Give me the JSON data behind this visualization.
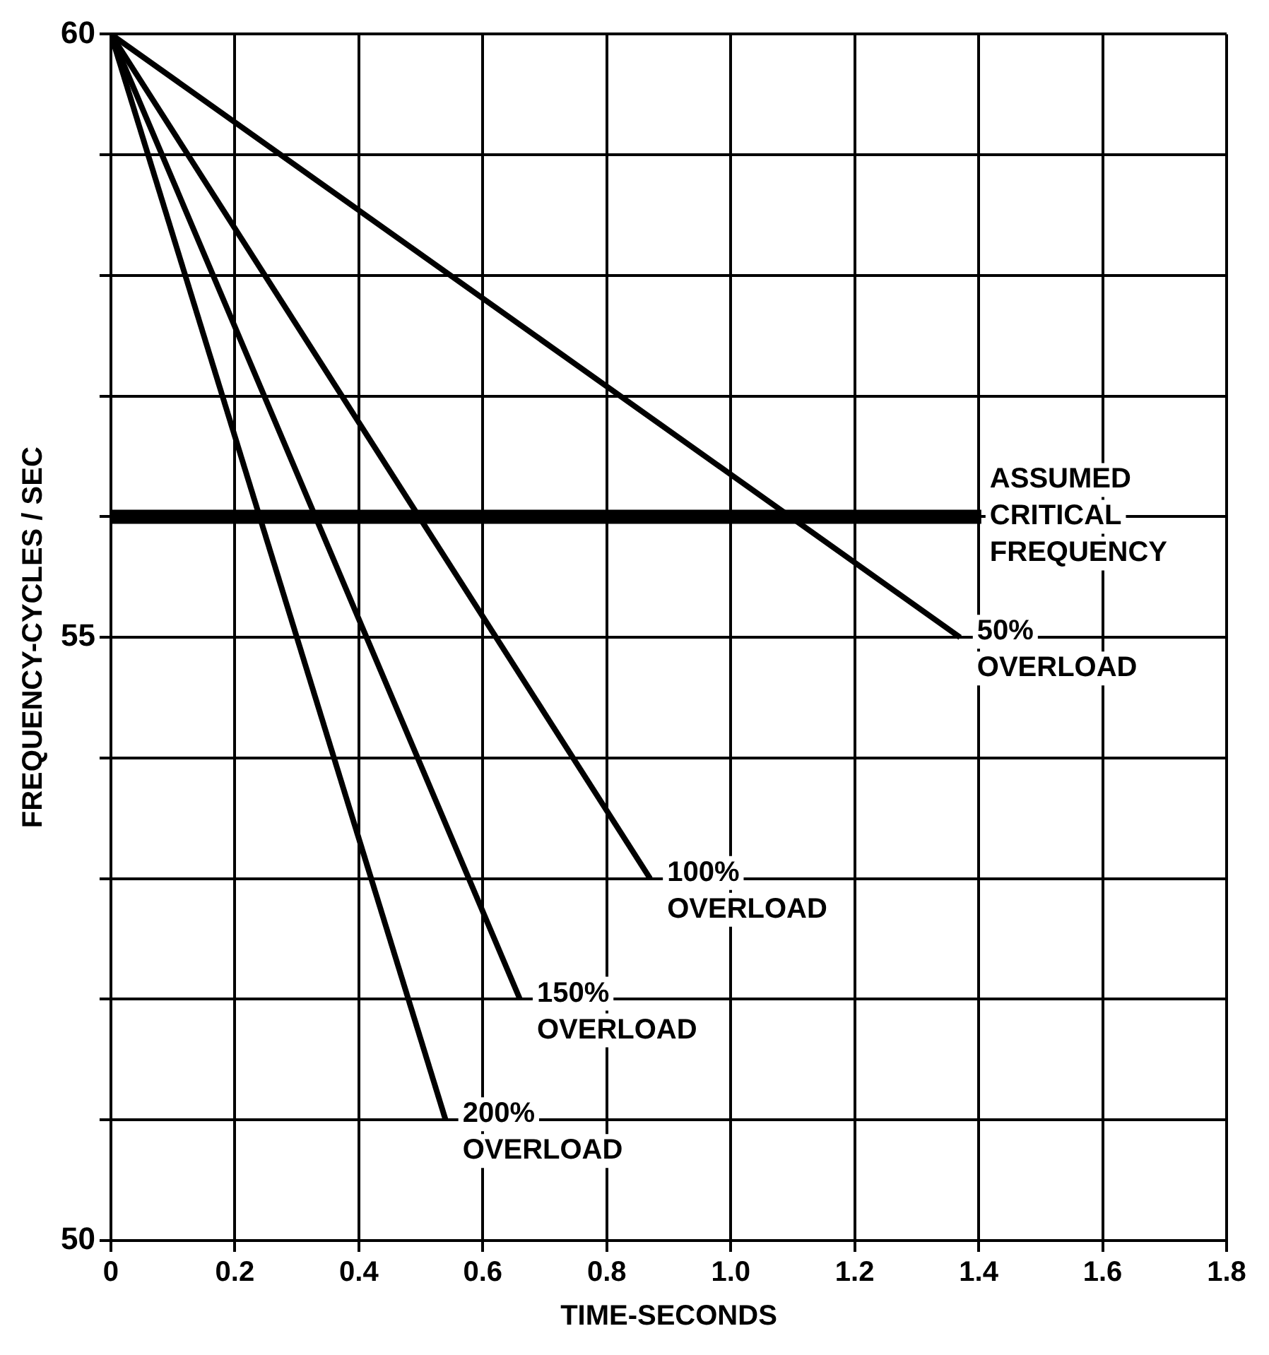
{
  "chart_data": {
    "type": "line",
    "xlabel": "TIME-SECONDS",
    "ylabel": "FREQUENCY-CYCLES / SEC",
    "xlim": [
      0,
      1.8
    ],
    "xticks": [
      0,
      0.2,
      0.4,
      0.6,
      0.8,
      {
        "value": 1,
        "label": "1.0"
      },
      1.2,
      1.4,
      1.6,
      1.8
    ],
    "ylim": [
      50,
      60
    ],
    "yticks": [
      50,
      {
        "value": 51,
        "label": null
      },
      {
        "value": 52,
        "label": null
      },
      {
        "value": 53,
        "label": null
      },
      {
        "value": 54,
        "label": null
      },
      55,
      {
        "value": 56,
        "label": null
      },
      {
        "value": 57,
        "label": null
      },
      {
        "value": 58,
        "label": null
      },
      {
        "value": 59,
        "label": null
      },
      60
    ],
    "grid": true,
    "legend": false,
    "marker": "none",
    "line_style": "solid",
    "series": [
      {
        "name": "50% OVERLOAD",
        "color": "#000000",
        "x": [
          0,
          1.37
        ],
        "values": [
          60,
          55.0
        ]
      },
      {
        "name": "100% OVERLOAD",
        "color": "#000000",
        "x": [
          0,
          0.87
        ],
        "values": [
          60,
          53.0
        ]
      },
      {
        "name": "150% OVERLOAD",
        "color": "#000000",
        "x": [
          0,
          0.66
        ],
        "values": [
          60,
          52.0
        ]
      },
      {
        "name": "200% OVERLOAD",
        "color": "#000000",
        "x": [
          0,
          0.54
        ],
        "values": [
          60,
          51.0
        ]
      }
    ],
    "ref_lines": [
      {
        "axis": "y",
        "value": 56,
        "label": "ASSUMED CRITICAL FREQUENCY",
        "color": "#000000"
      }
    ]
  }
}
